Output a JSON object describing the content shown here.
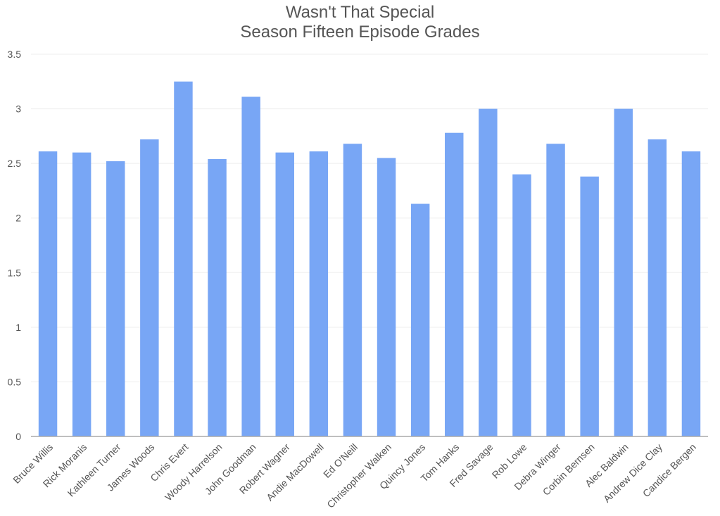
{
  "chart_data": {
    "type": "bar",
    "title": [
      "Wasn't That Special",
      "Season Fifteen Episode Grades"
    ],
    "xlabel": "",
    "ylabel": "",
    "ylim": [
      0,
      3.5
    ],
    "yticks": [
      "0",
      "0.5",
      "1",
      "1.5",
      "2",
      "2.5",
      "3",
      "3.5"
    ],
    "grid": true,
    "legend": "none",
    "bar_color": "#78a6f5",
    "categories": [
      "Bruce Willis",
      "Rick Moranis",
      "Kathleen Turner",
      "James Woods",
      "Chris Evert",
      "Woody Harrelson",
      "John Goodman",
      "Robert Wagner",
      "Andie MacDowell",
      "Ed O'Neill",
      "Christopher Walken",
      "Quincy Jones",
      "Tom Hanks",
      "Fred Savage",
      "Rob Lowe",
      "Debra Winger",
      "Corbin Bernsen",
      "Alec Baldwin",
      "Andrew Dice Clay",
      "Candice Bergen"
    ],
    "values": [
      2.61,
      2.6,
      2.52,
      2.72,
      3.25,
      2.54,
      3.11,
      2.6,
      2.61,
      2.68,
      2.55,
      2.13,
      2.78,
      3.0,
      2.4,
      2.68,
      2.38,
      3.0,
      2.72,
      2.61
    ]
  }
}
